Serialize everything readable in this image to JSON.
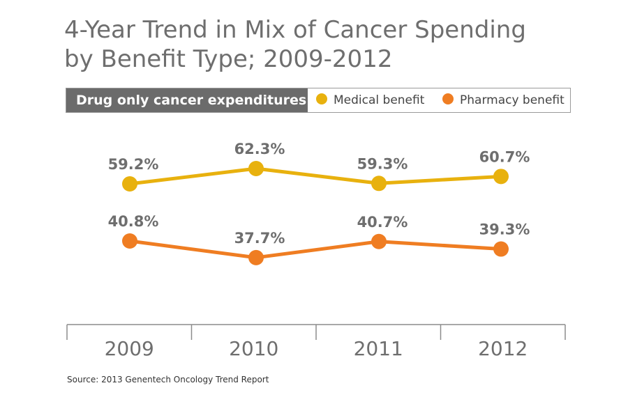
{
  "title_line1": "4-Year Trend in Mix of Cancer Spending",
  "title_line2": "by Benefit Type; 2009-2012",
  "legend": {
    "header": "Drug only cancer expenditures",
    "items": [
      {
        "label": "Medical benefit",
        "color": "#e8b10e"
      },
      {
        "label": "Pharmacy benefit",
        "color": "#ef7d22"
      }
    ]
  },
  "source": "Source:  2013 Genentech Oncology Trend Report",
  "chart_data": {
    "type": "line",
    "categories": [
      "2009",
      "2010",
      "2011",
      "2012"
    ],
    "series": [
      {
        "name": "Medical benefit",
        "color": "#e8b10e",
        "values": [
          59.2,
          62.3,
          59.3,
          60.7
        ],
        "labels": [
          "59.2%",
          "62.3%",
          "59.3%",
          "60.7%"
        ]
      },
      {
        "name": "Pharmacy benefit",
        "color": "#ef7d22",
        "values": [
          40.8,
          37.7,
          40.7,
          39.3
        ],
        "labels": [
          "40.8%",
          "37.7%",
          "40.7%",
          "39.3%"
        ]
      }
    ],
    "title": "4-Year Trend in Mix of Cancer Spending by Benefit Type; 2009-2012",
    "xlabel": "",
    "ylabel": "",
    "legend_position": "top",
    "grid": false
  }
}
